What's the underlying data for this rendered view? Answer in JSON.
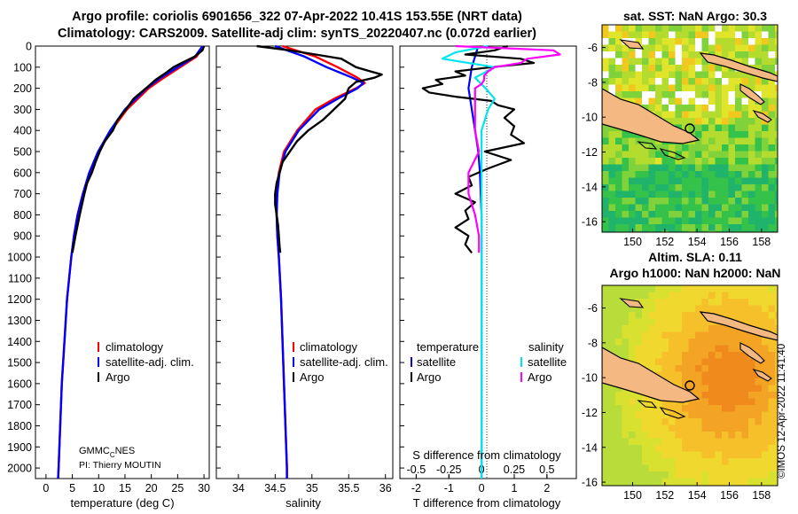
{
  "header": {
    "line1": "Argo profile: coriolis 6901656_322 07-Apr-2022 10.41S 153.55E (NRT data)",
    "line2": "Climatology: CARS2009. Satellite-adj clim: synTS_20220407.nc (0.072d earlier)"
  },
  "colors": {
    "climatology": "#ff0000",
    "satellite": "#0000ff",
    "argo": "#000000",
    "sat_cyan": "#00e5ee",
    "argo_magenta": "#ff00ff"
  },
  "chart_data": [
    {
      "type": "line",
      "id": "temperature",
      "xlabel": "temperature (deg C)",
      "ylabel": "",
      "xlim": [
        -2,
        31
      ],
      "ylim": [
        2050,
        0
      ],
      "xticks": [
        "0",
        "5",
        "10",
        "15",
        "20",
        "25",
        "30"
      ],
      "yticks": [
        "0",
        "100",
        "200",
        "300",
        "400",
        "500",
        "600",
        "700",
        "800",
        "900",
        "1000",
        "1100",
        "1200",
        "1300",
        "1400",
        "1500",
        "1600",
        "1700",
        "1800",
        "1900",
        "2000"
      ],
      "legend": [
        "climatology",
        "satellite-adj. clim.",
        "Argo"
      ],
      "credit1": "GMMC",
      "credit_sub": "C",
      "credit2": "NES",
      "credit3": "PI: Thierry MOUTIN",
      "series": [
        {
          "name": "climatology",
          "depth": [
            0,
            50,
            100,
            150,
            200,
            300,
            400,
            500,
            600,
            700,
            800,
            900,
            1000,
            1200,
            1400,
            1600,
            1800,
            2000,
            2050
          ],
          "values": [
            29.8,
            28.6,
            25.5,
            22.4,
            19.5,
            15.4,
            12.4,
            10.0,
            8.3,
            7.0,
            6.0,
            5.3,
            4.8,
            4.0,
            3.5,
            3.0,
            2.7,
            2.4,
            2.3
          ]
        },
        {
          "name": "satellite-adj. clim.",
          "depth": [
            0,
            50,
            100,
            150,
            200,
            300,
            400,
            500,
            600,
            700,
            800,
            900,
            1000,
            1200,
            1400,
            1600,
            1800,
            2000,
            2050
          ],
          "values": [
            29.7,
            28.3,
            25.0,
            21.8,
            19.1,
            15.0,
            12.2,
            9.9,
            8.2,
            7.0,
            6.0,
            5.3,
            4.8,
            4.0,
            3.5,
            3.0,
            2.7,
            2.4,
            2.3
          ]
        },
        {
          "name": "Argo",
          "depth": [
            0,
            20,
            50,
            80,
            100,
            130,
            160,
            200,
            250,
            300,
            350,
            400,
            450,
            500,
            550,
            600,
            650,
            700,
            800,
            900,
            980
          ],
          "values": [
            30.0,
            29.7,
            28.2,
            25.8,
            24.2,
            22.6,
            20.8,
            19.0,
            16.6,
            15.2,
            13.6,
            12.7,
            11.2,
            10.2,
            9.4,
            8.7,
            7.8,
            7.3,
            6.4,
            5.6,
            5.0
          ]
        }
      ]
    },
    {
      "type": "line",
      "id": "salinity",
      "xlabel": "salinity",
      "ylabel": "",
      "xlim": [
        33.7,
        36.1
      ],
      "ylim": [
        2050,
        0
      ],
      "xticks": [
        "34",
        "34.5",
        "35",
        "35.5",
        "36"
      ],
      "legend": [
        "climatology",
        "satellite-adj. clim.",
        "Argo"
      ],
      "series": [
        {
          "name": "climatology",
          "depth": [
            0,
            50,
            100,
            150,
            175,
            200,
            250,
            300,
            400,
            500,
            600,
            700,
            800,
            900,
            1000,
            1200,
            1600,
            2000,
            2050
          ],
          "values": [
            34.6,
            35.05,
            35.35,
            35.62,
            35.72,
            35.6,
            35.3,
            35.05,
            34.8,
            34.62,
            34.55,
            34.52,
            34.52,
            34.53,
            34.55,
            34.58,
            34.62,
            34.66,
            34.66
          ]
        },
        {
          "name": "satellite-adj. clim.",
          "depth": [
            0,
            50,
            100,
            150,
            175,
            200,
            250,
            300,
            400,
            500,
            600,
            700,
            800,
            900,
            1000,
            1200,
            1600,
            2000,
            2050
          ],
          "values": [
            34.5,
            34.9,
            35.2,
            35.55,
            35.7,
            35.62,
            35.35,
            35.1,
            34.82,
            34.64,
            34.56,
            34.53,
            34.52,
            34.53,
            34.55,
            34.58,
            34.62,
            34.66,
            34.66
          ]
        },
        {
          "name": "Argo",
          "depth": [
            0,
            20,
            40,
            60,
            80,
            100,
            120,
            135,
            150,
            170,
            200,
            250,
            300,
            350,
            400,
            450,
            500,
            550,
            600,
            650,
            700,
            750,
            800,
            850,
            900,
            950,
            980
          ],
          "values": [
            34.25,
            34.7,
            35.05,
            35.4,
            35.5,
            35.6,
            35.8,
            35.95,
            35.85,
            35.6,
            35.5,
            35.45,
            35.3,
            35.15,
            34.95,
            34.8,
            34.7,
            34.6,
            34.56,
            34.52,
            34.5,
            34.5,
            34.52,
            34.54,
            34.55,
            34.56,
            34.57
          ]
        }
      ]
    },
    {
      "type": "line",
      "id": "difference",
      "xlabel": "T difference from climatology",
      "xlabel2": "S difference from climatology",
      "xlim": [
        -2.5,
        2.9
      ],
      "s_xlim": [
        -0.625,
        0.725
      ],
      "ylim": [
        2050,
        0
      ],
      "xticks": [
        "-2",
        "-1",
        "0",
        "1",
        "2"
      ],
      "s_xticks": [
        "-0.5",
        "-0.25",
        "0",
        "0.25",
        "0.5"
      ],
      "legend_temp_title": "temperature",
      "legend_sal_title": "salinity",
      "legend_temp": [
        "satellite",
        "Argo"
      ],
      "legend_sal": [
        "satellite",
        "Argo"
      ],
      "series": [
        {
          "name": "temperature satellite",
          "depth": [
            0,
            100,
            200,
            300,
            400,
            500,
            600,
            800,
            1000,
            1500,
            2000,
            2050
          ],
          "values": [
            -0.1,
            -0.3,
            -0.4,
            -0.3,
            -0.2,
            -0.1,
            -0.05,
            0,
            0,
            0,
            0,
            0
          ]
        },
        {
          "name": "temperature Argo",
          "depth": [
            0,
            20,
            40,
            60,
            80,
            100,
            120,
            140,
            160,
            180,
            200,
            220,
            240,
            260,
            280,
            300,
            340,
            380,
            420,
            460,
            500,
            540,
            580,
            620,
            660,
            700,
            740,
            780,
            820,
            860,
            900,
            940,
            980
          ],
          "values": [
            0.8,
            0.4,
            -0.5,
            1.2,
            1.6,
            0.3,
            -0.8,
            -0.5,
            -1.4,
            -1.2,
            -1.8,
            -1.6,
            -0.8,
            0.3,
            0.5,
            1.0,
            0.7,
            1.0,
            0.9,
            1.3,
            0.1,
            0.9,
            0.2,
            -0.4,
            -0.3,
            -0.8,
            -0.2,
            -0.5,
            -0.4,
            -0.8,
            -0.4,
            -0.5,
            -0.3
          ]
        },
        {
          "name": "salinity satellite",
          "depth": [
            0,
            30,
            60,
            100,
            150,
            200,
            250,
            300,
            400,
            500,
            600,
            800,
            1000,
            1500,
            2000,
            2050
          ],
          "values": [
            0.05,
            -0.2,
            -0.3,
            0.1,
            -0.05,
            0.03,
            0.1,
            0.05,
            0.0,
            0.0,
            0.0,
            0.0,
            0.0,
            0.0,
            0.0,
            0.0
          ]
        },
        {
          "name": "salinity Argo",
          "depth": [
            0,
            20,
            40,
            60,
            80,
            100,
            120,
            140,
            160,
            180,
            200,
            250,
            300,
            400,
            500,
            600,
            700,
            800,
            900,
            980
          ],
          "values": [
            -0.2,
            0.55,
            0.6,
            0.35,
            0.3,
            0.1,
            0.05,
            0.02,
            0.02,
            0.0,
            -0.05,
            -0.05,
            -0.05,
            -0.05,
            -0.02,
            -0.1,
            -0.1,
            -0.05,
            -0.02,
            -0.02
          ]
        }
      ]
    }
  ],
  "maps": {
    "sst": {
      "title": "sat. SST: NaN Argo: 30.3",
      "yticks": [
        "-6",
        "-8",
        "-10",
        "-12",
        "-14",
        "-16"
      ],
      "xticks": [
        "150",
        "152",
        "154",
        "156",
        "158"
      ]
    },
    "sla": {
      "title1": "Altim. SLA: 0.11",
      "title2": "Argo h1000: NaN h2000: NaN",
      "yticks": [
        "-6",
        "-8",
        "-10",
        "-12",
        "-14",
        "-16"
      ],
      "xticks": [
        "150",
        "152",
        "154",
        "156",
        "158"
      ]
    }
  },
  "footer": {
    "imos": "©IMOS 12-Apr-2022 11:41:40"
  }
}
